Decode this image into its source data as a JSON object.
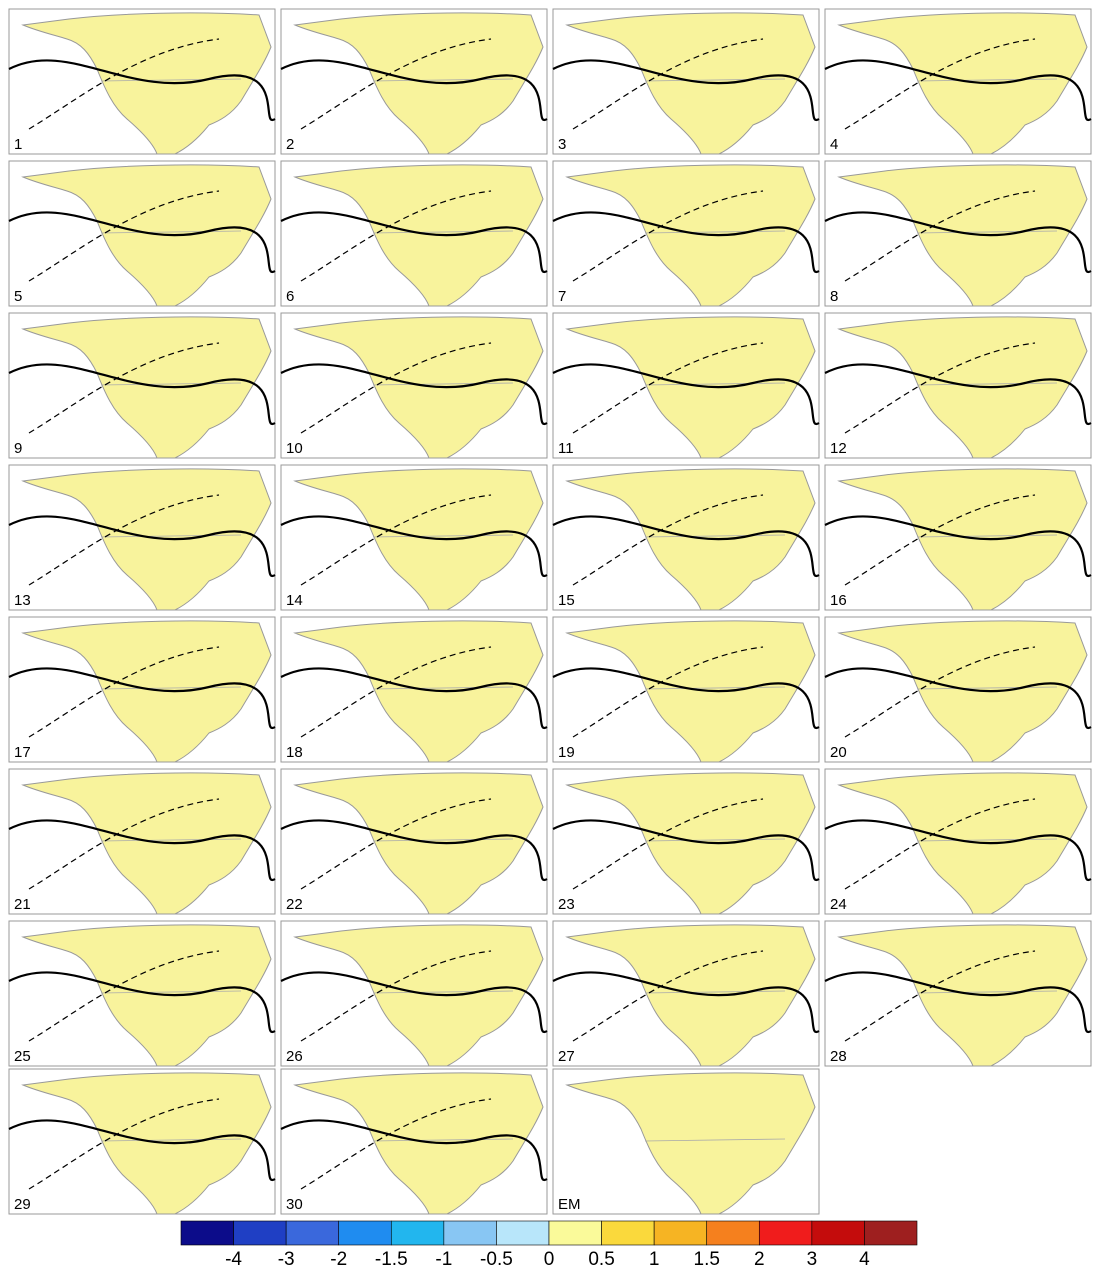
{
  "panels": [
    {
      "label": "1"
    },
    {
      "label": "2"
    },
    {
      "label": "3"
    },
    {
      "label": "4"
    },
    {
      "label": "5"
    },
    {
      "label": "6"
    },
    {
      "label": "7"
    },
    {
      "label": "8"
    },
    {
      "label": "9"
    },
    {
      "label": "10"
    },
    {
      "label": "11"
    },
    {
      "label": "12"
    },
    {
      "label": "13"
    },
    {
      "label": "14"
    },
    {
      "label": "15"
    },
    {
      "label": "16"
    },
    {
      "label": "17"
    },
    {
      "label": "18"
    },
    {
      "label": "19"
    },
    {
      "label": "20"
    },
    {
      "label": "21"
    },
    {
      "label": "22"
    },
    {
      "label": "23"
    },
    {
      "label": "24"
    },
    {
      "label": "25"
    },
    {
      "label": "26"
    },
    {
      "label": "27"
    },
    {
      "label": "28"
    },
    {
      "label": "29"
    },
    {
      "label": "30"
    },
    {
      "label": "EM"
    }
  ],
  "colorbar": {
    "colors": [
      "#0c0c8a",
      "#1f3fc4",
      "#3a68dc",
      "#1f8cf0",
      "#22b6ee",
      "#88c6f3",
      "#b8e6fa",
      "#fafa9a",
      "#fad93c",
      "#f6b423",
      "#f5801e",
      "#f01c1c",
      "#c40c0c",
      "#9e1f1f"
    ],
    "ticks": [
      -4,
      -3,
      -2,
      -1.5,
      -1,
      -0.5,
      0,
      0.5,
      1,
      1.5,
      2,
      3,
      4
    ]
  }
}
